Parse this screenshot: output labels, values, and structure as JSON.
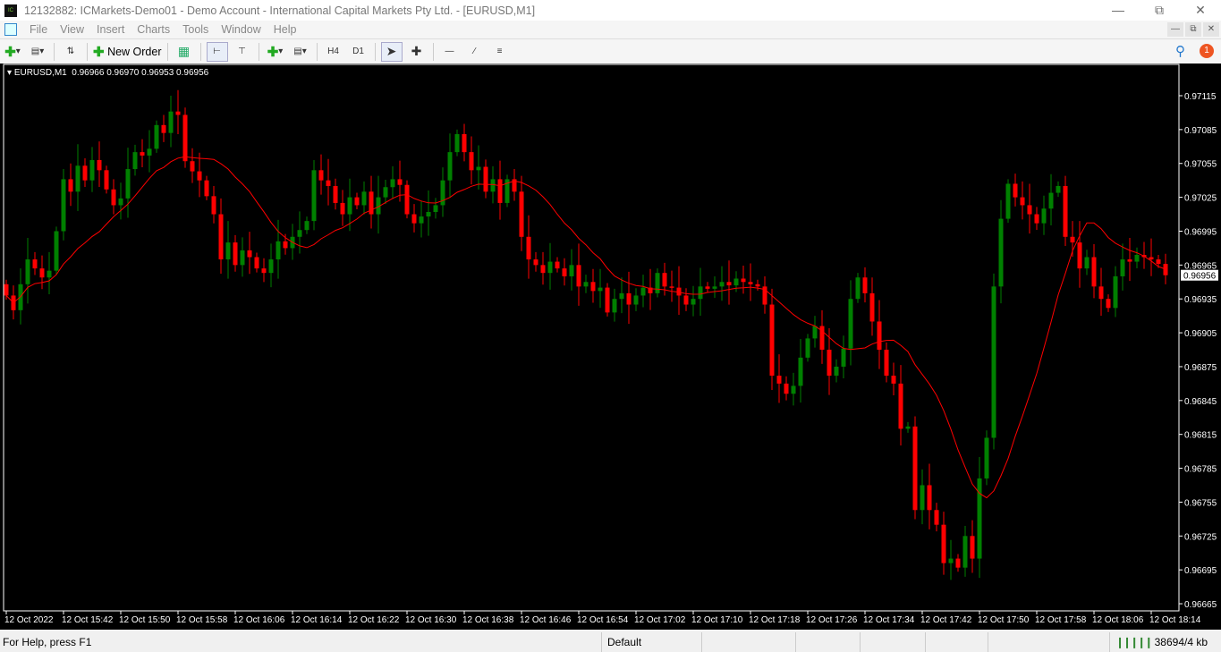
{
  "window": {
    "title": "12132882: ICMarkets-Demo01 - Demo Account - International Capital Markets Pty Ltd. - [EURUSD,M1]",
    "logo": "IC Markets"
  },
  "menu": [
    "File",
    "View",
    "Insert",
    "Charts",
    "Tools",
    "Window",
    "Help"
  ],
  "toolbar": {
    "new_order": "New Order",
    "h4": "H4",
    "d1": "D1",
    "notification_count": "1"
  },
  "chart_header": {
    "symbol": "EURUSD,M1",
    "ohlc": "0.96966 0.96970 0.96953 0.96956"
  },
  "status": {
    "help": "For Help, press F1",
    "profile": "Default",
    "traffic": "38694/4 kb"
  },
  "colors": {
    "bull": "#008000",
    "bear": "#ff0000",
    "ma": "#ff0000",
    "background": "#000000",
    "axis": "#ffffff"
  },
  "chart_data": {
    "type": "candlestick",
    "symbol": "EURUSD",
    "timeframe": "M1",
    "start_time": "12 Oct 15:34",
    "ylim": [
      0.96665,
      0.97115
    ],
    "y_ticks": [
      "0.97115",
      "0.97085",
      "0.97055",
      "0.97025",
      "0.96995",
      "0.96965",
      "0.96935",
      "0.96905",
      "0.96875",
      "0.96845",
      "0.96815",
      "0.96785",
      "0.96755",
      "0.96725",
      "0.96695",
      "0.96665"
    ],
    "x_ticks": [
      "12 Oct 2022",
      "12 Oct 15:42",
      "12 Oct 15:50",
      "12 Oct 15:58",
      "12 Oct 16:06",
      "12 Oct 16:14",
      "12 Oct 16:22",
      "12 Oct 16:30",
      "12 Oct 16:38",
      "12 Oct 16:46",
      "12 Oct 16:54",
      "12 Oct 17:02",
      "12 Oct 17:10",
      "12 Oct 17:18",
      "12 Oct 17:26",
      "12 Oct 17:34",
      "12 Oct 17:42",
      "12 Oct 17:50",
      "12 Oct 17:58",
      "12 Oct 18:06",
      "12 Oct 18:14"
    ],
    "current_price": "0.96956",
    "overlay": "moving average",
    "close": [
      0.96938,
      0.96925,
      0.96948,
      0.9697,
      0.96962,
      0.96954,
      0.9696,
      0.96995,
      0.97041,
      0.9703,
      0.97053,
      0.9704,
      0.97058,
      0.97049,
      0.97032,
      0.97018,
      0.97024,
      0.9705,
      0.97065,
      0.97062,
      0.97068,
      0.97089,
      0.97082,
      0.97101,
      0.97098,
      0.97057,
      0.97048,
      0.9704,
      0.97026,
      0.9701,
      0.9697,
      0.96985,
      0.96965,
      0.96978,
      0.96972,
      0.96962,
      0.96958,
      0.9697,
      0.96986,
      0.9698,
      0.9699,
      0.96996,
      0.97004,
      0.97049,
      0.9704,
      0.97035,
      0.9702,
      0.9701,
      0.97025,
      0.97018,
      0.9703,
      0.9701,
      0.97025,
      0.97034,
      0.97041,
      0.97036,
      0.9701,
      0.97002,
      0.97008,
      0.97012,
      0.97018,
      0.9704,
      0.97065,
      0.97081,
      0.97065,
      0.97049,
      0.97052,
      0.9703,
      0.97041,
      0.9702,
      0.97041,
      0.9703,
      0.9699,
      0.9697,
      0.96965,
      0.96958,
      0.96968,
      0.96962,
      0.96955,
      0.96965,
      0.96946,
      0.9695,
      0.96942,
      0.96945,
      0.96923,
      0.96935,
      0.9694,
      0.9693,
      0.96938,
      0.96945,
      0.9694,
      0.96958,
      0.96946,
      0.96945,
      0.96938,
      0.9693,
      0.96935,
      0.96946,
      0.96944,
      0.96946,
      0.9695,
      0.96947,
      0.96953,
      0.9695,
      0.96948,
      0.96946,
      0.9693,
      0.96867,
      0.9686,
      0.96851,
      0.96858,
      0.96883,
      0.969,
      0.96911,
      0.9689,
      0.96867,
      0.96875,
      0.96891,
      0.96935,
      0.96954,
      0.9694,
      0.96915,
      0.9689,
      0.96867,
      0.9686,
      0.9682,
      0.96822,
      0.96748,
      0.9677,
      0.96748,
      0.96735,
      0.96701,
      0.96705,
      0.96697,
      0.96725,
      0.96705,
      0.96776,
      0.96812,
      0.96946,
      0.97006,
      0.97037,
      0.97025,
      0.97018,
      0.9701,
      0.97002,
      0.97015,
      0.97029,
      0.97035,
      0.9699,
      0.96985,
      0.96962,
      0.96972,
      0.96946,
      0.96935,
      0.96927,
      0.96955,
      0.9697,
      0.96968,
      0.96974,
      0.96972,
      0.9697,
      0.96966,
      0.96956
    ]
  }
}
